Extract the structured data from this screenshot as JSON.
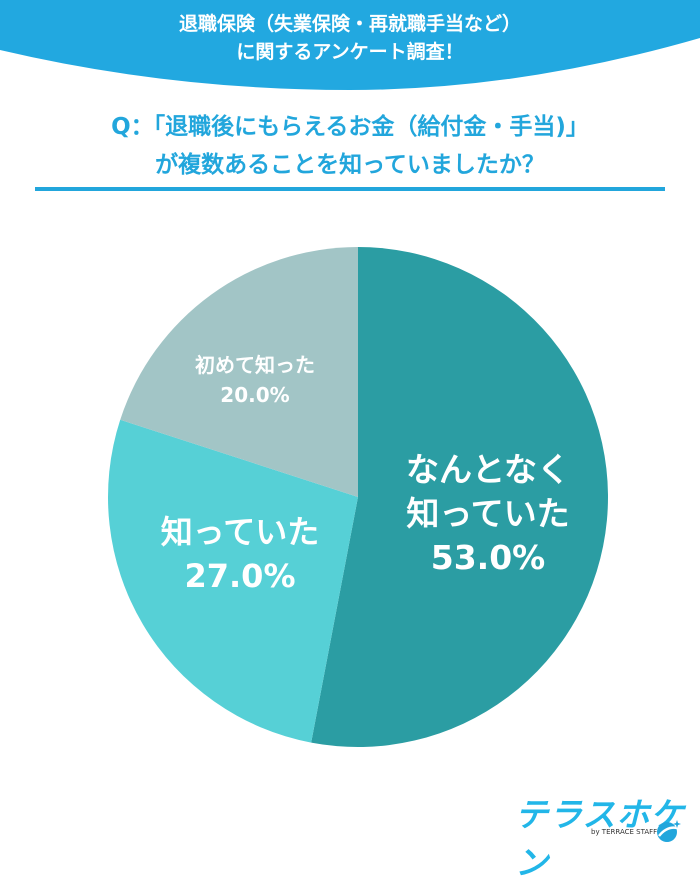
{
  "header": {
    "line1": "退職保険（失業保険・再就職手当など）",
    "line2": "に関するアンケート調査！"
  },
  "question": {
    "line1": "Q：「退職後にもらえるお金（給付金・手当)」",
    "line2": "が複数あることを知っていましたか？"
  },
  "colors": {
    "banner": "#22a8e0",
    "accent": "#22a6dc",
    "slice_1": "#2b9da3",
    "slice_2": "#56d0d6",
    "slice_3": "#a2c5c6"
  },
  "chart_data": {
    "type": "pie",
    "title": "退職後にもらえるお金（給付金・手当)が複数あることを知っていましたか？",
    "categories": [
      "なんとなく知っていた",
      "知っていた",
      "初めて知った"
    ],
    "values": [
      53.0,
      27.0,
      20.0
    ],
    "unit": "%",
    "start_angle": "12 o'clock, clockwise",
    "labels": [
      {
        "line1": "なんとなく",
        "line2": "知っていた",
        "value": "53.0%"
      },
      {
        "line1": "知っていた",
        "value": "27.0%"
      },
      {
        "line1": "初めて知った",
        "value": "20.0%"
      }
    ]
  },
  "logo": {
    "name": "テラスホケン",
    "sub": "by TERRACE STAFF"
  }
}
